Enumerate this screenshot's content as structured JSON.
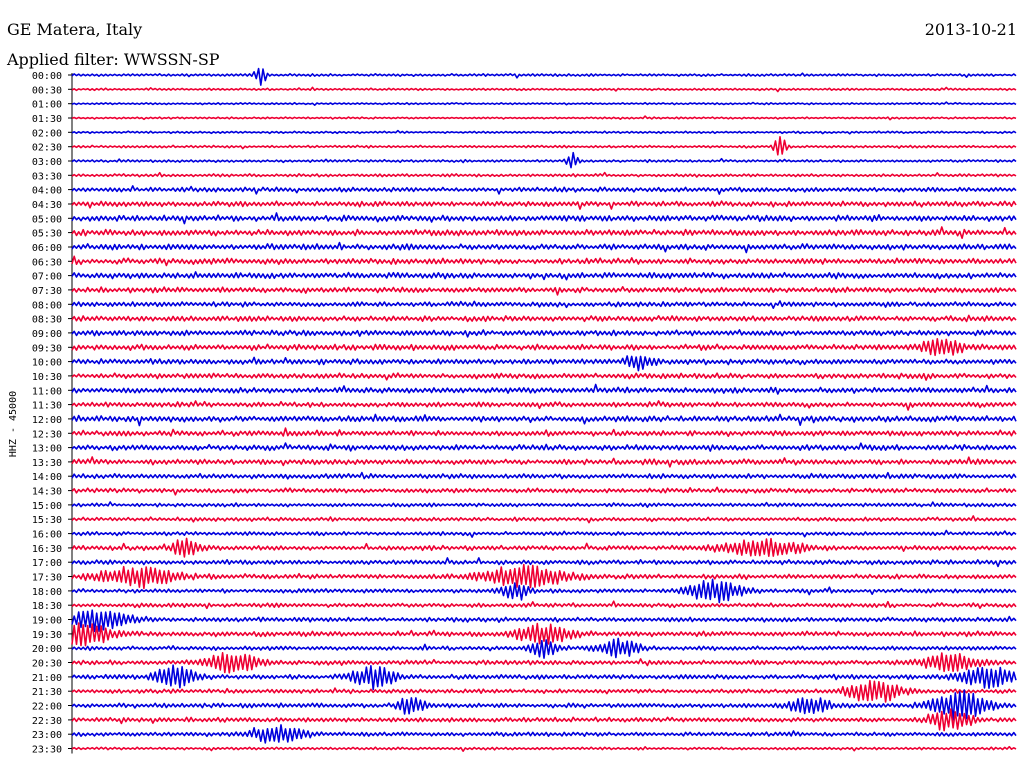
{
  "header": {
    "station": "GE Matera, Italy",
    "date": "2013-10-21",
    "filter": "Applied filter: WWSSN-SP"
  },
  "chart_data": {
    "type": "line",
    "ylabel": "HHZ - 45000",
    "row_labels": [
      "00:00",
      "00:30",
      "01:00",
      "01:30",
      "02:00",
      "02:30",
      "03:00",
      "03:30",
      "04:00",
      "04:30",
      "05:00",
      "05:30",
      "06:00",
      "06:30",
      "07:00",
      "07:30",
      "08:00",
      "08:30",
      "09:00",
      "09:30",
      "10:00",
      "10:30",
      "11:00",
      "11:30",
      "12:00",
      "12:30",
      "13:00",
      "13:30",
      "14:00",
      "14:30",
      "15:00",
      "15:30",
      "16:00",
      "16:30",
      "17:00",
      "17:30",
      "18:00",
      "18:30",
      "19:00",
      "19:30",
      "20:00",
      "20:30",
      "21:00",
      "21:30",
      "22:00",
      "22:30",
      "23:00",
      "23:30"
    ],
    "series_colors": [
      "#0000dd",
      "#ee0033"
    ],
    "trace_count": 48,
    "noise_level": [
      0.3,
      0.25,
      0.22,
      0.22,
      0.25,
      0.3,
      0.3,
      0.35,
      0.55,
      0.65,
      0.7,
      0.75,
      0.7,
      0.7,
      0.7,
      0.65,
      0.6,
      0.65,
      0.65,
      0.7,
      0.65,
      0.65,
      0.65,
      0.6,
      0.7,
      0.65,
      0.65,
      0.65,
      0.6,
      0.55,
      0.45,
      0.45,
      0.45,
      0.55,
      0.55,
      0.55,
      0.5,
      0.5,
      0.55,
      0.6,
      0.5,
      0.55,
      0.55,
      0.5,
      0.55,
      0.55,
      0.5,
      0.3
    ],
    "events": [
      {
        "trace": 0,
        "time": 0.2,
        "amp": 3.0,
        "dur": 0.004
      },
      {
        "trace": 5,
        "time": 0.75,
        "amp": 3.5,
        "dur": 0.004
      },
      {
        "trace": 6,
        "time": 0.53,
        "amp": 2.5,
        "dur": 0.004
      },
      {
        "trace": 19,
        "time": 0.92,
        "amp": 2.5,
        "dur": 0.015
      },
      {
        "trace": 20,
        "time": 0.6,
        "amp": 2.0,
        "dur": 0.01
      },
      {
        "trace": 33,
        "time": 0.12,
        "amp": 2.5,
        "dur": 0.01
      },
      {
        "trace": 33,
        "time": 0.73,
        "amp": 2.5,
        "dur": 0.03
      },
      {
        "trace": 35,
        "time": 0.07,
        "amp": 2.5,
        "dur": 0.03
      },
      {
        "trace": 35,
        "time": 0.48,
        "amp": 3.0,
        "dur": 0.03
      },
      {
        "trace": 36,
        "time": 0.47,
        "amp": 2.5,
        "dur": 0.01
      },
      {
        "trace": 36,
        "time": 0.68,
        "amp": 3.0,
        "dur": 0.02
      },
      {
        "trace": 38,
        "time": 0.03,
        "amp": 3.0,
        "dur": 0.02
      },
      {
        "trace": 39,
        "time": 0.01,
        "amp": 3.5,
        "dur": 0.02
      },
      {
        "trace": 39,
        "time": 0.5,
        "amp": 2.5,
        "dur": 0.02
      },
      {
        "trace": 40,
        "time": 0.5,
        "amp": 2.5,
        "dur": 0.01
      },
      {
        "trace": 40,
        "time": 0.58,
        "amp": 2.5,
        "dur": 0.015
      },
      {
        "trace": 41,
        "time": 0.17,
        "amp": 3.0,
        "dur": 0.02
      },
      {
        "trace": 41,
        "time": 0.93,
        "amp": 2.5,
        "dur": 0.02
      },
      {
        "trace": 42,
        "time": 0.11,
        "amp": 3.0,
        "dur": 0.015
      },
      {
        "trace": 42,
        "time": 0.32,
        "amp": 3.0,
        "dur": 0.015
      },
      {
        "trace": 42,
        "time": 0.97,
        "amp": 3.0,
        "dur": 0.02
      },
      {
        "trace": 43,
        "time": 0.85,
        "amp": 3.0,
        "dur": 0.02
      },
      {
        "trace": 44,
        "time": 0.36,
        "amp": 2.5,
        "dur": 0.01
      },
      {
        "trace": 44,
        "time": 0.78,
        "amp": 2.5,
        "dur": 0.015
      },
      {
        "trace": 44,
        "time": 0.94,
        "amp": 4.0,
        "dur": 0.02
      },
      {
        "trace": 45,
        "time": 0.93,
        "amp": 3.0,
        "dur": 0.015
      },
      {
        "trace": 46,
        "time": 0.22,
        "amp": 2.5,
        "dur": 0.02
      }
    ]
  }
}
